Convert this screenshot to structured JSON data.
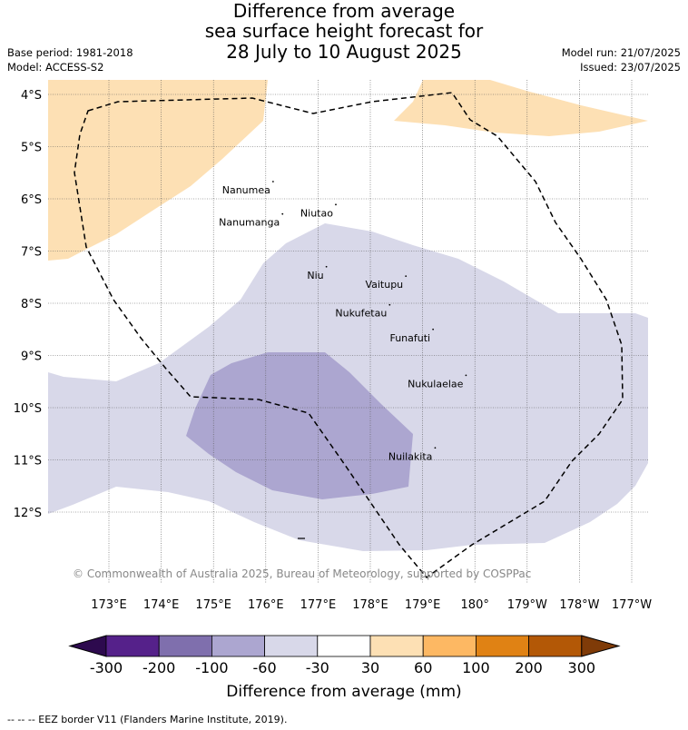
{
  "title_lines": [
    "Difference from average",
    "sea surface height forecast for",
    "28 July to 10 August 2025"
  ],
  "base_period": "Base period: 1981-2018",
  "model": "Model: ACCESS-S2",
  "model_run": "Model run: 21/07/2025",
  "issued": "Issued: 23/07/2025",
  "lat_labels": [
    "4°S",
    "5°S",
    "6°S",
    "7°S",
    "8°S",
    "9°S",
    "10°S",
    "11°S",
    "12°S"
  ],
  "lon_labels": [
    "173°E",
    "174°E",
    "175°E",
    "176°E",
    "177°E",
    "178°E",
    "179°E",
    "180°",
    "179°W",
    "178°W",
    "177°W"
  ],
  "islands": [
    {
      "name": "Nanumea",
      "lon": 176.14,
      "lat": -5.67
    },
    {
      "name": "Nanumanga",
      "lon": 176.32,
      "lat": -6.29
    },
    {
      "name": "Niutao",
      "lon": 177.34,
      "lat": -6.11
    },
    {
      "name": "Niu",
      "lon": 177.16,
      "lat": -7.3
    },
    {
      "name": "Vaitupu",
      "lon": 178.68,
      "lat": -7.48
    },
    {
      "name": "Nukufetau",
      "lon": 178.37,
      "lat": -8.03
    },
    {
      "name": "Funafuti",
      "lon": 179.2,
      "lat": -8.5
    },
    {
      "name": "Nukulaelae",
      "lon": 179.83,
      "lat": -9.38
    },
    {
      "name": "Nuilakita",
      "lon": 179.24,
      "lat": -10.77
    }
  ],
  "copyright": "© Commonwealth of Australia 2025, Bureau of Meteorology, supported by COSPPac",
  "colorbar": {
    "title": "Difference from average (mm)",
    "tick_labels": [
      "-300",
      "-200",
      "-100",
      "-60",
      "-30",
      "30",
      "60",
      "100",
      "200",
      "300"
    ],
    "colors": [
      "#2d0a4e",
      "#55218a",
      "#7f6fad",
      "#aca6d0",
      "#d8d8e9",
      "#ffffff",
      "#fde0b4",
      "#fdb863",
      "#e08214",
      "#b35806",
      "#7f3b08"
    ]
  },
  "footer": "-- -- -- EEZ border V11 (Flanders Marine Institute, 2019).",
  "anomaly_fills": [
    {
      "range_mm": "-100 to -60",
      "color": "#aca6d0"
    },
    {
      "range_mm": "-60 to -30",
      "color": "#d8d8e9"
    },
    {
      "range_mm": "30 to 60",
      "color": "#fde0b4"
    }
  ]
}
